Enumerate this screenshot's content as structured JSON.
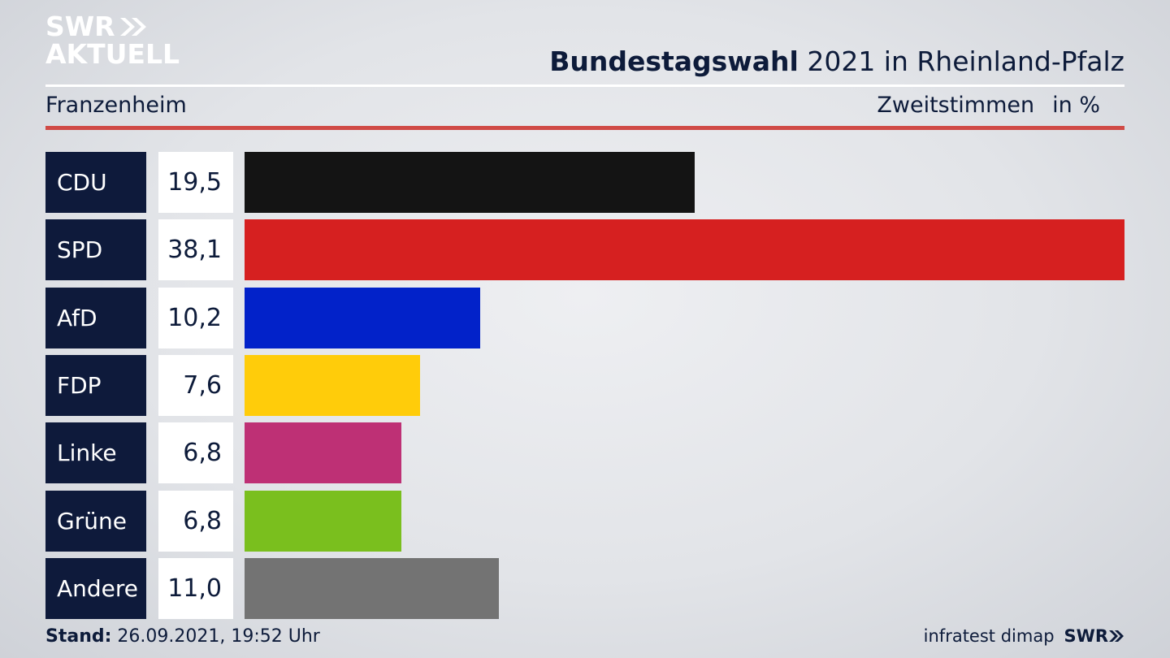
{
  "logo": {
    "line1": "SWR",
    "line2": "AKTUELL"
  },
  "title": {
    "bold": "Bundestagswahl",
    "rest": " 2021 in Rheinland-Pfalz"
  },
  "location": "Franzenheim",
  "measure": {
    "label": "Zweitstimmen",
    "unit": "in %"
  },
  "chart_data": {
    "type": "bar",
    "orientation": "horizontal",
    "categories": [
      "CDU",
      "SPD",
      "AfD",
      "FDP",
      "Linke",
      "Grüne",
      "Andere"
    ],
    "values": [
      19.5,
      38.1,
      10.2,
      7.6,
      6.8,
      6.8,
      11.0
    ],
    "value_labels": [
      "19,5",
      "38,1",
      "10,2",
      "7,6",
      "6,8",
      "6,8",
      "11,0"
    ],
    "colors": [
      "#141414",
      "#d62020",
      "#0222c9",
      "#ffcc0a",
      "#be3075",
      "#7abf1e",
      "#737373"
    ],
    "xlim": [
      0,
      38.1
    ]
  },
  "footer": {
    "stand_label": "Stand:",
    "stand_value": " 26.09.2021, 19:52 Uhr",
    "source": "infratest dimap",
    "brand": "SWR"
  }
}
